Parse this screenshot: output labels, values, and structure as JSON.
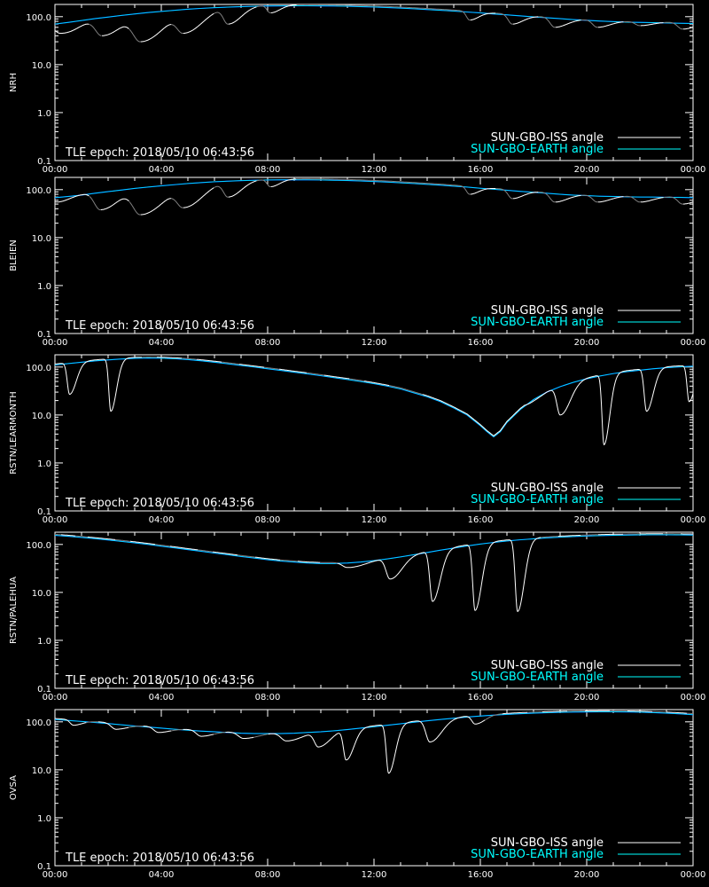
{
  "colors": {
    "background": "#000000",
    "axes": "#ffffff",
    "iss_day": "#ffffff",
    "iss_night": "#7f7f7f",
    "earth": "#00ffff",
    "earth_below": "#0000ff"
  },
  "chart_data": [
    {
      "type": "line",
      "ylabel": "NRH",
      "annotation": "TLE epoch: 2018/05/10 06:43:56",
      "legend": [
        "SUN-GBO-ISS angle",
        "SUN-GBO-EARTH angle"
      ],
      "legend_placement": "bottom-right",
      "x_ticks": [
        "00:00",
        "04:00",
        "08:00",
        "12:00",
        "16:00",
        "20:00",
        "00:00"
      ],
      "x_range_hours": [
        0,
        24
      ],
      "y_scale": "log",
      "y_range": [
        0.1,
        180
      ],
      "y_ticks": [
        "0.1",
        "1.0",
        "10.0",
        "100.0"
      ],
      "series": [
        {
          "x": [
            0,
            0.5,
            1,
            1.5,
            2,
            2.5,
            3,
            3.5,
            4,
            4.5,
            5,
            5.5,
            6,
            6.5,
            7,
            7.5,
            8,
            8.5,
            9,
            9.5,
            10,
            10.5,
            11,
            11.5,
            12,
            12.5,
            13,
            13.5,
            14,
            14.5,
            15,
            15.5,
            16,
            16.5,
            17,
            17.5,
            18,
            18.5,
            19,
            19.5,
            20,
            20.5,
            21,
            21.5,
            22,
            22.5,
            23,
            23.5,
            24
          ],
          "y": [
            70,
            76,
            83,
            91,
            98,
            106,
            114,
            122,
            129,
            136,
            143,
            149,
            154,
            158,
            162,
            165,
            167,
            168,
            169,
            169,
            168,
            167,
            165,
            162,
            159,
            155,
            151,
            146,
            141,
            136,
            131,
            125,
            120,
            114,
            109,
            104,
            99,
            95,
            91,
            87,
            84,
            81,
            79,
            77,
            76,
            75,
            74,
            73,
            72
          ]
        }
      ],
      "iss_troughs": [
        {
          "t": 0.02,
          "y": 68,
          "r": 0.5
        },
        {
          "t": 0.2,
          "y": 45,
          "r": 0.9
        },
        {
          "t": 1.75,
          "y": 40,
          "r": 1.0
        },
        {
          "t": 3.2,
          "y": 30,
          "r": 1.2
        },
        {
          "t": 4.8,
          "y": 45,
          "r": 1.0
        },
        {
          "t": 6.5,
          "y": 70,
          "r": 0.7
        },
        {
          "t": 8.1,
          "y": 120,
          "r": 0.5
        },
        {
          "t": 15.6,
          "y": 85,
          "r": 0.5
        },
        {
          "t": 17.2,
          "y": 70,
          "r": 0.6
        },
        {
          "t": 18.8,
          "y": 60,
          "r": 0.7
        },
        {
          "t": 20.4,
          "y": 60,
          "r": 0.7
        },
        {
          "t": 22.0,
          "y": 65,
          "r": 0.7
        },
        {
          "t": 23.6,
          "y": 55,
          "r": 0.7
        }
      ],
      "iss_night_spans": [
        [
          1.3,
          1.75
        ],
        [
          2.8,
          3.2
        ],
        [
          4.4,
          4.8
        ],
        [
          6.0,
          6.5
        ],
        [
          7.6,
          8.1
        ],
        [
          9.1,
          15.6
        ],
        [
          16.6,
          17.2
        ],
        [
          18.2,
          18.8
        ],
        [
          19.8,
          20.4
        ],
        [
          21.4,
          22.0
        ],
        [
          22.9,
          23.6
        ]
      ]
    },
    {
      "type": "line",
      "ylabel": "BLEIEN",
      "annotation": "TLE epoch: 2018/05/10 06:43:56",
      "legend": [
        "SUN-GBO-ISS angle",
        "SUN-GBO-EARTH angle"
      ],
      "legend_placement": "bottom-right",
      "x_ticks": [
        "00:00",
        "04:00",
        "08:00",
        "12:00",
        "16:00",
        "20:00",
        "00:00"
      ],
      "x_range_hours": [
        0,
        24
      ],
      "y_scale": "log",
      "y_range": [
        0.1,
        180
      ],
      "y_ticks": [
        "0.1",
        "1.0",
        "10.0",
        "100.0"
      ],
      "series": [
        {
          "x": [
            0,
            0.5,
            1,
            1.5,
            2,
            2.5,
            3,
            3.5,
            4,
            4.5,
            5,
            5.5,
            6,
            6.5,
            7,
            7.5,
            8,
            8.5,
            9,
            9.5,
            10,
            10.5,
            11,
            11.5,
            12,
            12.5,
            13,
            13.5,
            14,
            14.5,
            15,
            15.5,
            16,
            16.5,
            17,
            17.5,
            18,
            18.5,
            19,
            19.5,
            20,
            20.5,
            21,
            21.5,
            22,
            22.5,
            23,
            23.5,
            24
          ],
          "y": [
            68,
            72,
            77,
            84,
            91,
            98,
            106,
            113,
            120,
            127,
            134,
            140,
            146,
            150,
            154,
            157,
            159,
            160,
            160,
            160,
            159,
            157,
            155,
            152,
            148,
            144,
            139,
            134,
            129,
            124,
            118,
            113,
            107,
            102,
            97,
            92,
            88,
            84,
            80,
            77,
            75,
            73,
            72,
            71,
            70,
            70,
            69,
            69,
            68
          ]
        }
      ],
      "iss_troughs": [
        {
          "t": 0.05,
          "y": 55,
          "r": 0.6
        },
        {
          "t": 1.7,
          "y": 38,
          "r": 0.9
        },
        {
          "t": 3.2,
          "y": 30,
          "r": 1.2
        },
        {
          "t": 4.8,
          "y": 42,
          "r": 1.0
        },
        {
          "t": 6.5,
          "y": 70,
          "r": 0.7
        },
        {
          "t": 8.1,
          "y": 115,
          "r": 0.5
        },
        {
          "t": 15.6,
          "y": 80,
          "r": 0.5
        },
        {
          "t": 17.2,
          "y": 65,
          "r": 0.6
        },
        {
          "t": 18.8,
          "y": 55,
          "r": 0.7
        },
        {
          "t": 20.4,
          "y": 55,
          "r": 0.7
        },
        {
          "t": 22.0,
          "y": 55,
          "r": 0.7
        },
        {
          "t": 23.6,
          "y": 50,
          "r": 0.7
        }
      ],
      "iss_night_spans": [
        [
          1.3,
          1.7
        ],
        [
          2.8,
          3.2
        ],
        [
          4.4,
          4.8
        ],
        [
          6.0,
          6.5
        ],
        [
          7.6,
          8.1
        ],
        [
          9.1,
          15.6
        ],
        [
          16.6,
          17.2
        ],
        [
          18.2,
          18.8
        ],
        [
          19.8,
          20.4
        ],
        [
          21.4,
          22.0
        ],
        [
          22.9,
          23.6
        ]
      ]
    },
    {
      "type": "line",
      "ylabel": "RSTN/LEARMONTH",
      "annotation": "TLE epoch: 2018/05/10 06:43:56",
      "legend": [
        "SUN-GBO-ISS angle",
        "SUN-GBO-EARTH angle"
      ],
      "legend_placement": "bottom-right",
      "x_ticks": [
        "00:00",
        "04:00",
        "08:00",
        "12:00",
        "16:00",
        "20:00",
        "00:00"
      ],
      "x_range_hours": [
        0,
        24
      ],
      "y_scale": "log",
      "y_range": [
        0.1,
        180
      ],
      "y_ticks": [
        "0.1",
        "1.0",
        "10.0",
        "100.0"
      ],
      "series": [
        {
          "x": [
            0,
            0.5,
            1,
            1.5,
            2,
            2.5,
            3,
            3.5,
            4,
            4.5,
            5,
            5.5,
            6,
            6.5,
            7,
            7.5,
            8,
            8.5,
            9,
            9.5,
            10,
            10.5,
            11,
            11.5,
            12,
            12.5,
            13,
            13.5,
            14,
            14.5,
            15,
            15.5,
            16,
            16.25,
            16.5,
            16.75,
            17,
            17.5,
            18,
            18.5,
            19,
            19.5,
            20,
            20.5,
            21,
            21.5,
            22,
            22.5,
            23,
            23.5,
            24
          ],
          "y": [
            110,
            118,
            126,
            134,
            141,
            147,
            152,
            154,
            153,
            149,
            143,
            135,
            126,
            117,
            108,
            100,
            92,
            85,
            78,
            72,
            66,
            60,
            55,
            50,
            45,
            40,
            35,
            29,
            24,
            19,
            14,
            10,
            6,
            4.5,
            3.5,
            4.5,
            7,
            13,
            21,
            30,
            39,
            48,
            57,
            65,
            73,
            80,
            86,
            92,
            97,
            101,
            104
          ]
        }
      ],
      "iss_troughs": [
        {
          "t": 0.55,
          "y": 27,
          "r": 0.35
        },
        {
          "t": 2.1,
          "y": 12,
          "r": 0.3
        },
        {
          "t": 13.8,
          "y": 45,
          "r": 0.9
        },
        {
          "t": 15.5,
          "y": 25,
          "r": 0.9
        },
        {
          "t": 17.2,
          "y": 16,
          "r": 0.8
        },
        {
          "t": 19.0,
          "y": 10,
          "r": 0.5
        },
        {
          "t": 20.65,
          "y": 2.4,
          "r": 0.3
        },
        {
          "t": 22.25,
          "y": 12,
          "r": 0.35
        },
        {
          "t": 23.85,
          "y": 19,
          "r": 0.3
        }
      ],
      "iss_night_spans": [
        [
          3.3,
          3.8
        ],
        [
          4.8,
          5.3
        ],
        [
          6.3,
          6.9
        ],
        [
          7.9,
          8.4
        ],
        [
          9.5,
          10.1
        ],
        [
          11.1,
          11.6
        ],
        [
          12.6,
          13.8
        ]
      ]
    },
    {
      "type": "line",
      "ylabel": "RSTN/PALEHUA",
      "annotation": "TLE epoch: 2018/05/10 06:43:56",
      "legend": [
        "SUN-GBO-ISS angle",
        "SUN-GBO-EARTH angle"
      ],
      "legend_placement": "bottom-right",
      "x_ticks": [
        "00:00",
        "04:00",
        "08:00",
        "12:00",
        "16:00",
        "20:00",
        "00:00"
      ],
      "x_range_hours": [
        0,
        24
      ],
      "y_scale": "log",
      "y_range": [
        0.1,
        180
      ],
      "y_ticks": [
        "0.1",
        "1.0",
        "10.0",
        "100.0"
      ],
      "series": [
        {
          "x": [
            0,
            0.5,
            1,
            1.5,
            2,
            2.5,
            3,
            3.5,
            4,
            4.5,
            5,
            5.5,
            6,
            6.5,
            7,
            7.5,
            8,
            8.5,
            9,
            9.5,
            10,
            10.5,
            11,
            11.5,
            12,
            12.5,
            13,
            13.5,
            14,
            14.5,
            15,
            15.5,
            16,
            16.5,
            17,
            17.5,
            18,
            18.5,
            19,
            19.5,
            20,
            20.5,
            21,
            21.5,
            22,
            22.5,
            23,
            23.5,
            24
          ],
          "y": [
            155,
            148,
            140,
            132,
            124,
            116,
            108,
            100,
            92,
            85,
            78,
            72,
            66,
            61,
            56,
            52,
            48,
            45,
            43,
            41,
            40,
            40,
            41,
            43,
            46,
            50,
            55,
            61,
            68,
            76,
            84,
            93,
            102,
            110,
            118,
            125,
            131,
            137,
            142,
            146,
            150,
            153,
            155,
            157,
            158,
            159,
            159,
            158,
            157
          ]
        }
      ],
      "iss_troughs": [
        {
          "t": 11.0,
          "y": 33,
          "r": 0.8
        },
        {
          "t": 12.6,
          "y": 19,
          "r": 0.6
        },
        {
          "t": 14.2,
          "y": 6.5,
          "r": 0.4
        },
        {
          "t": 15.8,
          "y": 4.2,
          "r": 0.35
        },
        {
          "t": 17.4,
          "y": 4.0,
          "r": 0.35
        }
      ],
      "iss_night_spans": [
        [
          0.0,
          0.2
        ],
        [
          0.8,
          1.2
        ],
        [
          2.3,
          2.8
        ],
        [
          3.8,
          4.3
        ],
        [
          5.4,
          5.9
        ],
        [
          6.9,
          7.5
        ],
        [
          8.5,
          9.1
        ],
        [
          10.0,
          10.6
        ],
        [
          18.3,
          18.9
        ],
        [
          19.8,
          20.4
        ],
        [
          21.4,
          22.0
        ],
        [
          22.9,
          23.5
        ]
      ]
    },
    {
      "type": "line",
      "ylabel": "OVSA",
      "annotation": "TLE epoch: 2018/05/10 06:43:56",
      "legend": [
        "SUN-GBO-ISS angle",
        "SUN-GBO-EARTH angle"
      ],
      "legend_placement": "bottom-right",
      "x_ticks": [
        "00:00",
        "04:00",
        "08:00",
        "12:00",
        "16:00",
        "20:00",
        "00:00"
      ],
      "x_range_hours": [
        0,
        24
      ],
      "y_scale": "log",
      "y_range": [
        0.1,
        180
      ],
      "y_ticks": [
        "0.1",
        "1.0",
        "10.0",
        "100.0"
      ],
      "series": [
        {
          "x": [
            0,
            0.5,
            1,
            1.5,
            2,
            2.5,
            3,
            3.5,
            4,
            4.5,
            5,
            5.5,
            6,
            6.5,
            7,
            7.5,
            8,
            8.5,
            9,
            9.5,
            10,
            10.5,
            11,
            11.5,
            12,
            12.5,
            13,
            13.5,
            14,
            14.5,
            15,
            15.5,
            16,
            16.5,
            17,
            17.5,
            18,
            18.5,
            19,
            19.5,
            20,
            20.5,
            21,
            21.5,
            22,
            22.5,
            23,
            23.5,
            24
          ],
          "y": [
            112,
            107,
            102,
            97,
            92,
            87,
            82,
            78,
            74,
            70,
            67,
            64,
            62,
            60,
            58,
            57,
            57,
            57,
            58,
            60,
            62,
            65,
            69,
            74,
            79,
            85,
            91,
            98,
            105,
            112,
            119,
            126,
            132,
            138,
            143,
            148,
            152,
            155,
            158,
            160,
            161,
            162,
            162,
            161,
            159,
            156,
            152,
            147,
            141
          ]
        }
      ],
      "iss_troughs": [
        {
          "t": 0.7,
          "y": 85,
          "r": 0.5
        },
        {
          "t": 2.3,
          "y": 70,
          "r": 0.7
        },
        {
          "t": 3.9,
          "y": 60,
          "r": 0.7
        },
        {
          "t": 5.5,
          "y": 50,
          "r": 0.7
        },
        {
          "t": 7.1,
          "y": 45,
          "r": 0.8
        },
        {
          "t": 8.7,
          "y": 40,
          "r": 0.8
        },
        {
          "t": 9.9,
          "y": 30,
          "r": 0.6
        },
        {
          "t": 10.95,
          "y": 16,
          "r": 0.4
        },
        {
          "t": 12.55,
          "y": 8.5,
          "r": 0.35
        },
        {
          "t": 14.1,
          "y": 38,
          "r": 0.6
        },
        {
          "t": 15.8,
          "y": 90,
          "r": 0.5
        }
      ],
      "iss_night_spans": [
        [
          1.2,
          1.6
        ],
        [
          2.8,
          3.3
        ],
        [
          4.4,
          4.8
        ],
        [
          6.0,
          6.4
        ],
        [
          7.5,
          8.0
        ],
        [
          16.2,
          16.8
        ],
        [
          17.8,
          18.3
        ],
        [
          19.3,
          19.9
        ],
        [
          20.9,
          21.5
        ],
        [
          22.5,
          23.0
        ],
        [
          23.8,
          24.0
        ]
      ]
    }
  ]
}
